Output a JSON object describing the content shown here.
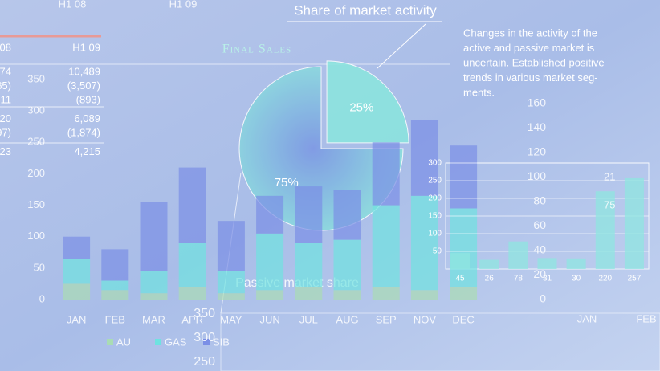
{
  "chart_data": [
    {
      "type": "pie",
      "title": "Share of market activity",
      "subtitle": "Final Sales",
      "annotation": "Passive market share",
      "values": [
        25,
        75
      ],
      "value_labels": [
        "25%",
        "75%"
      ],
      "colors": [
        "#8ae6de",
        "#7fdcd8"
      ]
    },
    {
      "type": "stacked-bar",
      "categories": [
        "JAN",
        "FEB",
        "MAR",
        "APR",
        "MAY",
        "JUN",
        "JUL",
        "AUG",
        "SEP",
        "NOV",
        "DEC"
      ],
      "ylim": [
        0,
        350
      ],
      "yticks": [
        0,
        50,
        100,
        150,
        200,
        250,
        300,
        350
      ],
      "series": [
        {
          "name": "AU",
          "color": "#a9dcb4",
          "values": [
            25,
            15,
            10,
            20,
            10,
            15,
            20,
            15,
            20,
            15,
            20
          ]
        },
        {
          "name": "GAS",
          "color": "#6fe2e0",
          "values": [
            40,
            15,
            35,
            70,
            35,
            90,
            70,
            80,
            130,
            150,
            125
          ]
        },
        {
          "name": "SIB",
          "color": "#7b8fe6",
          "values": [
            35,
            50,
            110,
            120,
            80,
            60,
            90,
            80,
            100,
            120,
            100
          ]
        }
      ]
    },
    {
      "type": "bar",
      "categories": [
        null,
        null,
        null,
        null,
        null,
        null,
        null
      ],
      "values": [
        45,
        26,
        78,
        31,
        30,
        220,
        257
      ],
      "color": "#8fe6e0",
      "ylim": [
        0,
        300
      ],
      "yticks": [
        50,
        100,
        150,
        200,
        250,
        300
      ],
      "grid": true
    }
  ],
  "table": {
    "header": [
      "08",
      "H1 09"
    ],
    "top_header": [
      "H1 08",
      "H1 09"
    ],
    "rows": [
      [
        "74",
        "10,489"
      ],
      [
        "65)",
        "(3,507)"
      ],
      [
        "11",
        "(893)"
      ],
      [
        "20",
        "6,089"
      ],
      [
        "97)",
        "(1,874)"
      ],
      [
        "23",
        "4,215"
      ]
    ]
  },
  "description": [
    "Changes in the activity of the",
    "active and passive market is",
    "uncertain. Established positive",
    "trends in various market seg-",
    "ments."
  ],
  "right_axis": [
    160,
    140,
    120,
    100,
    80,
    60,
    40,
    20,
    0
  ],
  "bottom_axis": [
    350,
    300,
    250
  ],
  "line_labels": [
    "21",
    "75"
  ],
  "bottom_right": [
    "JAN",
    "FEB"
  ]
}
